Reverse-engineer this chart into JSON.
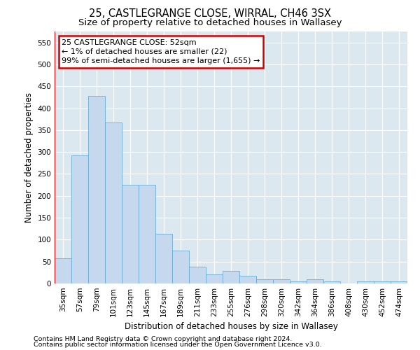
{
  "title": "25, CASTLEGRANGE CLOSE, WIRRAL, CH46 3SX",
  "subtitle": "Size of property relative to detached houses in Wallasey",
  "xlabel": "Distribution of detached houses by size in Wallasey",
  "ylabel": "Number of detached properties",
  "categories": [
    "35sqm",
    "57sqm",
    "79sqm",
    "101sqm",
    "123sqm",
    "145sqm",
    "167sqm",
    "189sqm",
    "211sqm",
    "233sqm",
    "255sqm",
    "276sqm",
    "298sqm",
    "320sqm",
    "342sqm",
    "364sqm",
    "386sqm",
    "408sqm",
    "430sqm",
    "452sqm",
    "474sqm"
  ],
  "values": [
    57,
    293,
    428,
    368,
    226,
    226,
    113,
    75,
    38,
    20,
    28,
    17,
    10,
    10,
    4,
    9,
    4,
    0,
    5,
    5,
    5
  ],
  "bar_color": "#c5d8ee",
  "bar_edge_color": "#6baed6",
  "ylim": [
    0,
    575
  ],
  "yticks": [
    0,
    50,
    100,
    150,
    200,
    250,
    300,
    350,
    400,
    450,
    500,
    550
  ],
  "annotation_text": "25 CASTLEGRANGE CLOSE: 52sqm\n← 1% of detached houses are smaller (22)\n99% of semi-detached houses are larger (1,655) →",
  "annotation_box_facecolor": "#ffffff",
  "annotation_box_edgecolor": "#cc0000",
  "vline_color": "#cc0000",
  "plot_bg_color": "#dce8f0",
  "footer1": "Contains HM Land Registry data © Crown copyright and database right 2024.",
  "footer2": "Contains public sector information licensed under the Open Government Licence v3.0.",
  "title_fontsize": 10.5,
  "subtitle_fontsize": 9.5,
  "axis_label_fontsize": 8.5,
  "tick_fontsize": 7.5,
  "annot_fontsize": 8,
  "footer_fontsize": 6.8
}
